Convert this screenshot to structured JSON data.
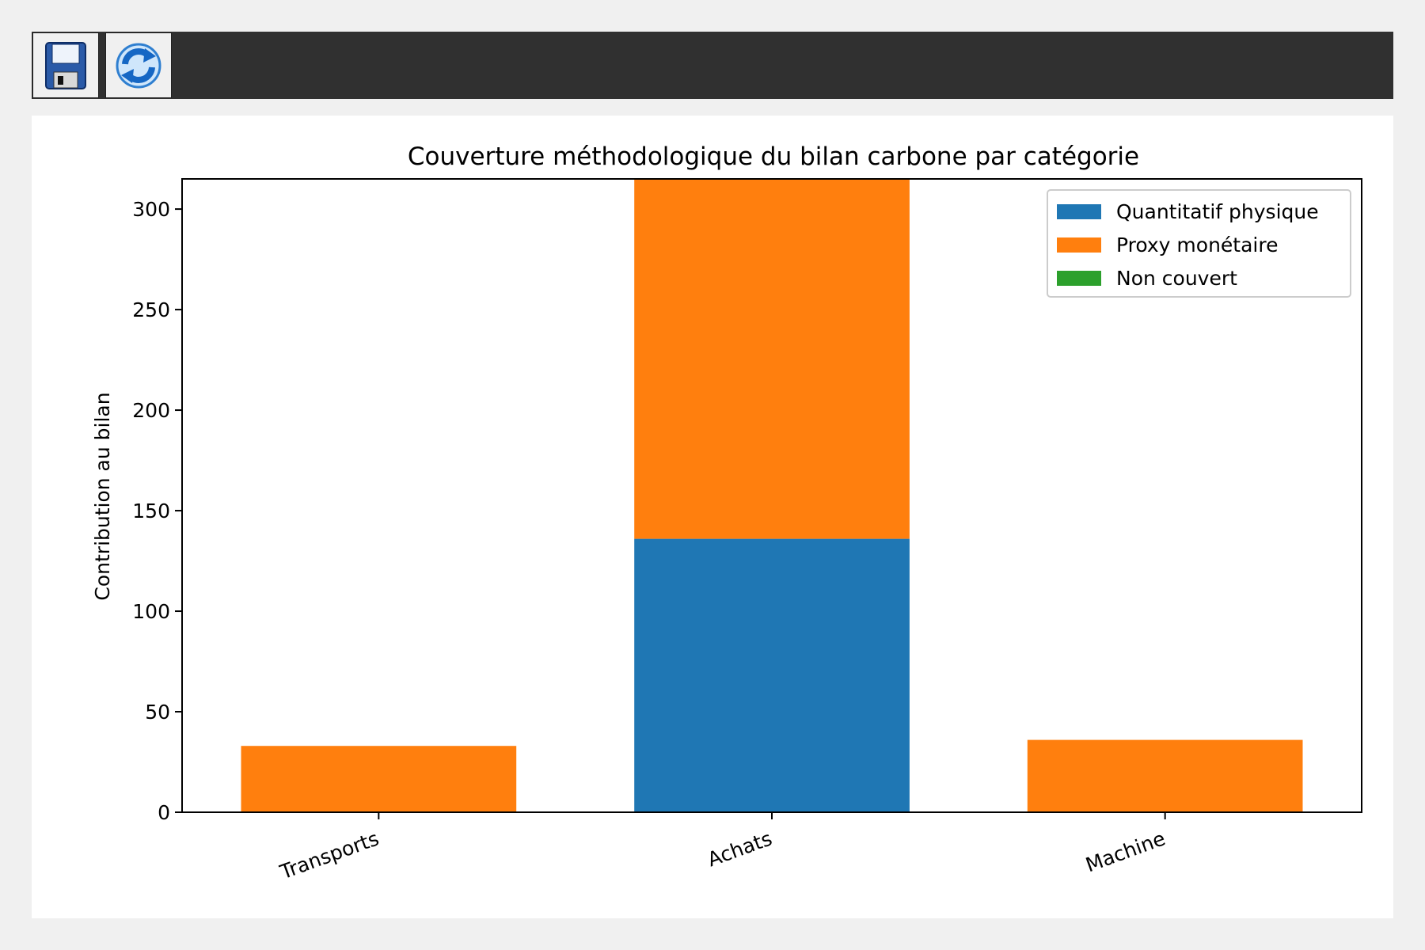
{
  "toolbar": {
    "buttons": [
      {
        "name": "save-button",
        "icon": "floppy-disk-icon"
      },
      {
        "name": "refresh-button",
        "icon": "refresh-icon"
      }
    ]
  },
  "colors": {
    "quantitatif": "#1f77b4",
    "proxy": "#ff7f0e",
    "non_couvert": "#2ca02c"
  },
  "chart_data": {
    "type": "bar",
    "stacked": true,
    "title": "Couverture méthodologique du bilan carbone par catégorie",
    "xlabel": "",
    "ylabel": "Contribution au bilan",
    "categories": [
      "Transports",
      "Achats",
      "Machine"
    ],
    "series": [
      {
        "name": "Quantitatif physique",
        "color": "#1f77b4",
        "values": [
          0,
          136,
          0
        ]
      },
      {
        "name": "Proxy monétaire",
        "color": "#ff7f0e",
        "values": [
          33,
          194,
          36
        ]
      },
      {
        "name": "Non couvert",
        "color": "#2ca02c",
        "values": [
          0,
          0,
          0
        ]
      }
    ],
    "ylim": [
      0,
      315
    ],
    "yticks": [
      0,
      50,
      100,
      150,
      200,
      250,
      300
    ],
    "legend_position": "top-right",
    "grid": false
  }
}
